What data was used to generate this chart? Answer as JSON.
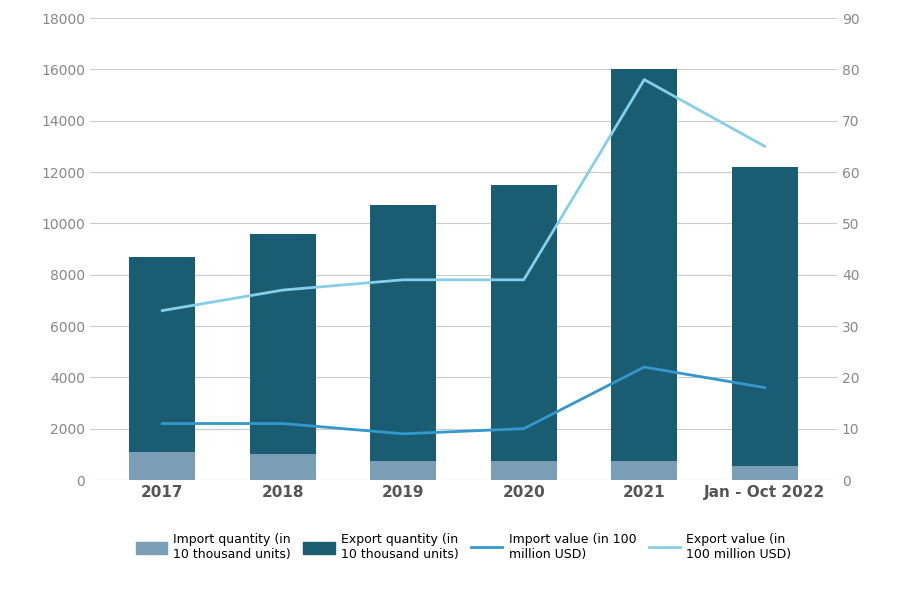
{
  "categories": [
    "2017",
    "2018",
    "2019",
    "2020",
    "2021",
    "Jan - Oct 2022"
  ],
  "import_quantity": [
    1100,
    1000,
    750,
    750,
    750,
    550
  ],
  "export_quantity": [
    8700,
    9600,
    10700,
    11500,
    16000,
    12200
  ],
  "import_value": [
    11,
    11,
    9,
    10,
    22,
    18
  ],
  "export_value": [
    33,
    37,
    39,
    39,
    78,
    65
  ],
  "import_qty_color": "#7a9eb5",
  "export_qty_color": "#1a5c72",
  "import_val_color": "#3399cc",
  "export_val_color": "#87cee8",
  "background_color": "#ffffff",
  "ylim_left": [
    0,
    18000
  ],
  "ylim_right": [
    0,
    90
  ],
  "yticks_left": [
    0,
    2000,
    4000,
    6000,
    8000,
    10000,
    12000,
    14000,
    16000,
    18000
  ],
  "yticks_right": [
    0,
    10,
    20,
    30,
    40,
    50,
    60,
    70,
    80,
    90
  ],
  "legend_labels": [
    "Import quantity (in\n10 thousand units)",
    "Export quantity (in\n10 thousand units)",
    "Import value (in 100\nmillion USD)",
    "Export value (in\n100 million USD)"
  ],
  "bar_width": 0.55,
  "figsize": [
    9.0,
    6.0
  ],
  "dpi": 100
}
